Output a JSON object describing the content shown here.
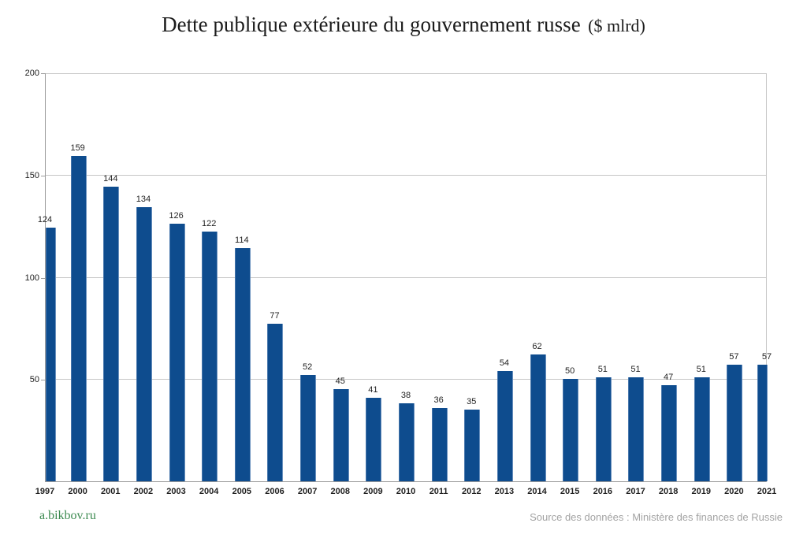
{
  "title": {
    "main": "Dette publique extérieure du gouvernement russe",
    "unit": "($ mlrd)"
  },
  "footer": {
    "site_link": "a.bikbov.ru",
    "source": "Source des données : Ministère des finances de Russie"
  },
  "colors": {
    "bar": "#0e4c8e",
    "gridline": "#c6c6c6",
    "axis": "#9b9b9b",
    "label": "#1f1f1f",
    "site_link": "#3c8a50",
    "source_text": "#a3a3a3"
  },
  "chart_data": {
    "type": "bar",
    "title": "Dette publique extérieure du gouvernement russe ($ mlrd)",
    "categories": [
      "1997",
      "2000",
      "2001",
      "2002",
      "2003",
      "2004",
      "2005",
      "2006",
      "2007",
      "2008",
      "2009",
      "2010",
      "2011",
      "2012",
      "2013",
      "2014",
      "2015",
      "2016",
      "2017",
      "2018",
      "2019",
      "2020",
      "2021"
    ],
    "values": [
      124,
      159,
      144,
      134,
      126,
      122,
      114,
      77,
      52,
      45,
      41,
      38,
      36,
      35,
      54,
      62,
      50,
      51,
      51,
      47,
      51,
      57,
      57
    ],
    "xlabel": "",
    "ylabel": "",
    "ylim": [
      0,
      200
    ],
    "yticks": [
      50,
      100,
      150,
      200
    ],
    "grid": true,
    "legend": false,
    "value_labels": true
  }
}
